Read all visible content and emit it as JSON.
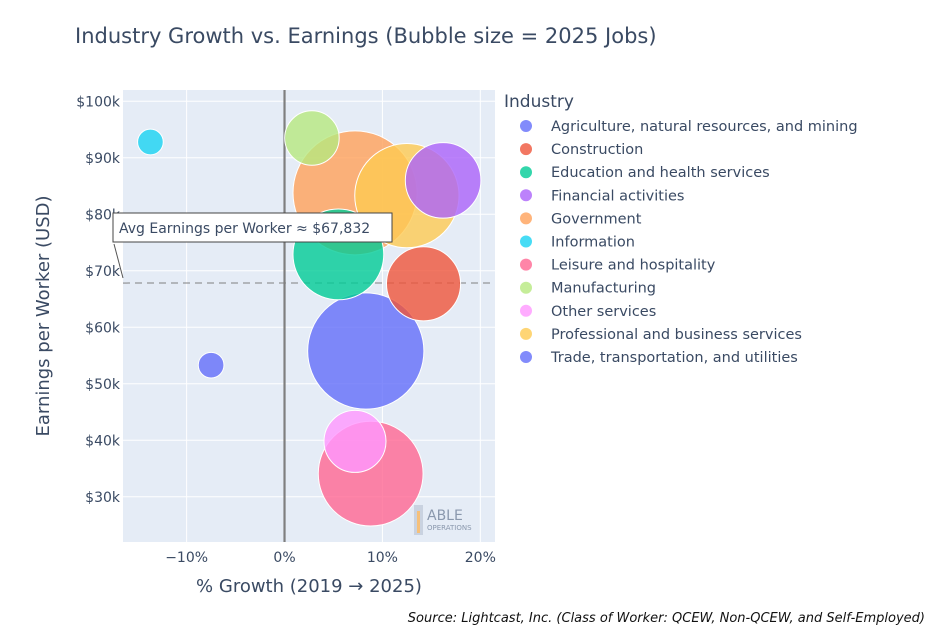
{
  "chart_data": {
    "type": "scatter",
    "title": "Industry Growth vs. Earnings (Bubble size = 2025 Jobs)",
    "xlabel": "% Growth (2019 → 2025)",
    "ylabel": "Earnings per Worker (USD)",
    "xlim": [
      -16.5,
      21.5
    ],
    "ylim": [
      22000,
      102000
    ],
    "x_ticks": [
      -10,
      0,
      10,
      20
    ],
    "x_tick_labels": [
      "−10%",
      "0%",
      "10%",
      "20%"
    ],
    "y_ticks": [
      30000,
      40000,
      50000,
      60000,
      70000,
      80000,
      90000,
      100000
    ],
    "y_tick_labels": [
      "$30k",
      "$40k",
      "$50k",
      "$60k",
      "$70k",
      "$80k",
      "$90k",
      "$100k"
    ],
    "legend_title": "Industry",
    "legend_position": "right",
    "reference_line": {
      "y": 67832,
      "label": "Avg Earnings per Worker ≈ $67,832"
    },
    "vertical_line": {
      "x": 0
    },
    "series": [
      {
        "name": "Agriculture, natural resources, and mining",
        "color": "#636efa",
        "x": -7.5,
        "y": 53300,
        "size": 0.06
      },
      {
        "name": "Construction",
        "color": "#ef553b",
        "x": 14.2,
        "y": 67700,
        "size": 0.5
      },
      {
        "name": "Education and health services",
        "color": "#00cc96",
        "x": 5.5,
        "y": 72900,
        "size": 0.75
      },
      {
        "name": "Financial activities",
        "color": "#ab63fa",
        "x": 16.2,
        "y": 86000,
        "size": 0.52
      },
      {
        "name": "Government",
        "color": "#ffa15a",
        "x": 7.2,
        "y": 83800,
        "size": 1.4
      },
      {
        "name": "Information",
        "color": "#19d3f3",
        "x": -13.7,
        "y": 92800,
        "size": 0.06
      },
      {
        "name": "Leisure and hospitality",
        "color": "#ff6692",
        "x": 8.8,
        "y": 34100,
        "size": 1.0
      },
      {
        "name": "Manufacturing",
        "color": "#b6e880",
        "x": 2.8,
        "y": 93500,
        "size": 0.27
      },
      {
        "name": "Other services",
        "color": "#ff97ff",
        "x": 7.2,
        "y": 39800,
        "size": 0.35
      },
      {
        "name": "Professional and business services",
        "color": "#fecb52",
        "x": 12.5,
        "y": 83300,
        "size": 0.99
      },
      {
        "name": "Trade, transportation, and utilities",
        "color": "#636efa",
        "x": 8.3,
        "y": 55800,
        "size": 1.23
      }
    ]
  },
  "logo": {
    "line1": "ABLE",
    "line2": "OPERATIONS"
  },
  "source_note": "Source: Lightcast, Inc. (Class of Worker: QCEW, Non-QCEW, and Self-Employed)"
}
